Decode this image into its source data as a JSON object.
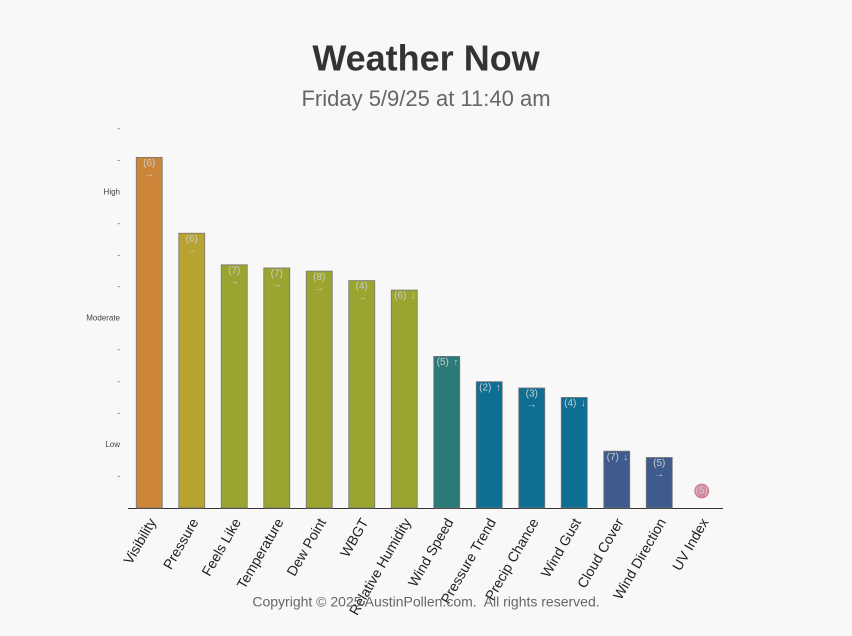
{
  "chart_data": {
    "type": "bar",
    "title": "Weather Now",
    "subtitle": "Friday 5/9/25 at 11:40 am",
    "footer": "Copyright © 2025 AustinPollen.com.  All rights reserved.",
    "categories": [
      "Visibility",
      "Pressure",
      "Feels Like",
      "Temperature",
      "Dew Point",
      "WBGT",
      "Relative Humidity",
      "Wind Speed",
      "Pressure Trend",
      "Precip Chance",
      "Wind Gust",
      "Cloud Cover",
      "Wind Direction",
      "UV Index"
    ],
    "values": [
      11.1,
      8.7,
      7.7,
      7.6,
      7.5,
      7.2,
      6.9,
      4.8,
      4.0,
      3.8,
      3.5,
      1.8,
      1.6,
      0
    ],
    "ranks": [
      "(6)",
      "(6)",
      "(7)",
      "(7)",
      "(8)",
      "(4)",
      "(6)",
      "(5)",
      "(2)",
      "(3)",
      "(4)",
      "(7)",
      "(5)",
      "(5)"
    ],
    "trends": [
      "→",
      "→",
      "→",
      "→",
      "→",
      "→",
      "↓",
      "↑",
      "↑",
      "→",
      "↓",
      "↓",
      "→",
      null
    ],
    "colors": [
      "#cd853a",
      "#b8a230",
      "#9aa42e",
      "#9aa42e",
      "#9aa42e",
      "#9aa42e",
      "#9aa42e",
      "#2b7a78",
      "#0f6e93",
      "#0f6e93",
      "#0f6e93",
      "#3f5a8c",
      "#3f5a8c",
      "#d48aa3"
    ],
    "ylim": [
      0,
      12
    ],
    "yticks": [
      {
        "value": 1,
        "label": "-"
      },
      {
        "value": 2,
        "label": "Low"
      },
      {
        "value": 3,
        "label": "-"
      },
      {
        "value": 4,
        "label": "-"
      },
      {
        "value": 5,
        "label": "-"
      },
      {
        "value": 6,
        "label": "Moderate"
      },
      {
        "value": 7,
        "label": "-"
      },
      {
        "value": 8,
        "label": "-"
      },
      {
        "value": 9,
        "label": "-"
      },
      {
        "value": 10,
        "label": "High"
      },
      {
        "value": 11,
        "label": "-"
      },
      {
        "value": 12,
        "label": "-"
      }
    ]
  }
}
